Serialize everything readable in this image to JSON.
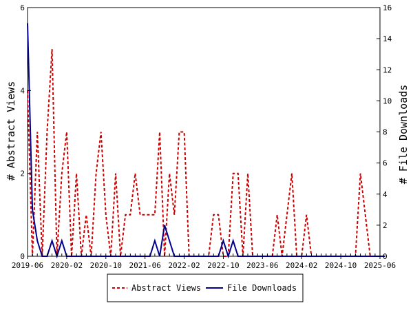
{
  "chart_data": {
    "type": "line",
    "ylabel": "# Abstract Views",
    "y2label": "# File Downloads",
    "ylim": [
      0,
      6
    ],
    "y2lim": [
      0,
      16
    ],
    "y_ticks": [
      "0",
      "2",
      "4",
      "6"
    ],
    "y2_ticks": [
      "0",
      "2",
      "4",
      "6",
      "8",
      "10",
      "12",
      "14",
      "16"
    ],
    "x_ticks": [
      "2019-06",
      "2020-02",
      "2020-10",
      "2021-06",
      "2022-02",
      "2022-10",
      "2023-06",
      "2024-02",
      "2024-10",
      "2025-06"
    ],
    "x_start": "2019-06",
    "x_end": "2025-06",
    "grid": false,
    "legend_position": "bottom",
    "series": [
      {
        "name": "Abstract Views",
        "axis": "left",
        "color": "#cc0000",
        "dash": "dashed",
        "x": [
          "2019-06",
          "2019-07",
          "2019-08",
          "2019-09",
          "2019-10",
          "2019-11",
          "2019-12",
          "2020-01",
          "2020-02",
          "2020-03",
          "2020-04",
          "2020-05",
          "2020-06",
          "2020-07",
          "2020-08",
          "2020-09",
          "2020-10",
          "2020-11",
          "2020-12",
          "2021-01",
          "2021-02",
          "2021-03",
          "2021-04",
          "2021-05",
          "2021-06",
          "2021-07",
          "2021-08",
          "2021-09",
          "2021-10",
          "2021-11",
          "2021-12",
          "2022-01",
          "2022-02",
          "2022-03",
          "2022-04",
          "2022-05",
          "2022-06",
          "2022-07",
          "2022-08",
          "2022-09",
          "2022-10",
          "2022-11",
          "2022-12",
          "2023-01",
          "2023-02",
          "2023-03",
          "2023-04",
          "2023-05",
          "2023-06",
          "2023-07",
          "2023-08",
          "2023-09",
          "2023-10",
          "2023-11",
          "2023-12",
          "2024-01",
          "2024-02",
          "2024-03",
          "2024-04",
          "2024-05",
          "2024-06",
          "2024-07",
          "2024-08",
          "2024-09",
          "2024-10",
          "2024-11",
          "2024-12",
          "2025-01",
          "2025-02",
          "2025-03",
          "2025-04",
          "2025-05",
          "2025-06",
          "2025-07"
        ],
        "values": [
          4,
          0,
          3,
          0,
          3,
          5,
          0,
          2,
          3,
          0,
          2,
          0,
          1,
          0,
          2,
          3,
          1,
          0,
          2,
          0,
          1,
          1,
          2,
          1,
          1,
          1,
          1,
          3,
          0,
          2,
          1,
          3,
          3,
          0,
          0,
          0,
          0,
          0,
          1,
          1,
          0,
          0,
          2,
          2,
          0,
          2,
          0,
          0,
          0,
          0,
          0,
          1,
          0,
          1,
          2,
          0,
          0,
          1,
          0,
          0,
          0,
          0,
          0,
          0,
          0,
          0,
          0,
          0,
          2,
          1,
          0,
          0,
          0,
          0
        ],
        "x_detail": [
          "2019-05-15",
          "2019-06",
          "2019-07",
          "2019-08",
          "2019-09",
          "2019-10",
          "2019-11",
          "2019-12",
          "2020-01",
          "2020-02",
          "2020-03",
          "2020-04",
          "2020-05",
          "2020-06",
          "2020-07",
          "2020-08",
          "2020-09",
          "2020-10",
          "2020-11",
          "2020-12",
          "2021-01",
          "2021-02",
          "2021-03",
          "2021-04",
          "2021-05",
          "2021-06",
          "2021-07",
          "2021-08",
          "2021-09",
          "2021-10",
          "2021-11",
          "2021-12",
          "2022-01",
          "2022-02",
          "2022-03",
          "2022-04",
          "2022-05",
          "2022-06",
          "2022-07",
          "2022-08",
          "2022-09",
          "2022-10",
          "2022-11",
          "2022-12",
          "2023-01",
          "2023-02",
          "2023-03",
          "2023-04",
          "2023-05",
          "2023-06",
          "2023-07",
          "2023-08",
          "2023-09",
          "2023-10",
          "2023-11",
          "2023-12",
          "2024-01",
          "2024-02",
          "2024-03",
          "2024-04",
          "2024-05",
          "2024-06",
          "2024-07",
          "2024-08",
          "2024-09",
          "2024-10",
          "2024-11",
          "2024-12",
          "2025-01",
          "2025-02",
          "2025-03",
          "2025-04",
          "2025-05",
          "2025-06",
          "2025-07"
        ]
      },
      {
        "name": "File Downloads",
        "axis": "right",
        "color": "#00008b",
        "dash": "solid",
        "x": [
          "2019-06",
          "2019-07",
          "2019-08",
          "2019-09",
          "2019-10",
          "2019-11",
          "2019-12",
          "2020-01",
          "2020-02",
          "2020-03",
          "2020-04",
          "2020-05",
          "2020-06",
          "2020-07",
          "2020-08",
          "2020-09",
          "2020-10",
          "2020-11",
          "2020-12",
          "2021-01",
          "2021-02",
          "2021-03",
          "2021-04",
          "2021-05",
          "2021-06",
          "2021-07",
          "2021-08",
          "2021-09",
          "2021-10",
          "2021-11",
          "2021-12",
          "2022-01",
          "2022-02",
          "2022-03",
          "2022-04",
          "2022-05",
          "2022-06",
          "2022-07",
          "2022-08",
          "2022-09",
          "2022-10",
          "2022-11",
          "2022-12",
          "2023-01",
          "2023-02",
          "2023-03",
          "2023-04",
          "2023-05",
          "2023-06",
          "2023-07",
          "2023-08",
          "2023-09",
          "2023-10",
          "2023-11",
          "2023-12",
          "2024-01",
          "2024-02",
          "2024-03",
          "2024-04",
          "2024-05",
          "2024-06",
          "2024-07",
          "2024-08",
          "2024-09",
          "2024-10",
          "2024-11",
          "2024-12",
          "2025-01",
          "2025-02",
          "2025-03",
          "2025-04",
          "2025-05",
          "2025-06",
          "2025-07"
        ],
        "values": [
          15,
          3,
          1,
          0,
          0,
          1,
          0,
          1,
          0,
          0,
          0,
          0,
          0,
          0,
          0,
          0,
          0,
          0,
          0,
          0,
          0,
          0,
          0,
          0,
          0,
          0,
          1,
          0,
          2,
          1,
          0,
          0,
          0,
          0,
          0,
          0,
          0,
          0,
          0,
          0,
          1,
          0,
          1,
          0,
          0,
          0,
          0,
          0,
          0,
          0,
          0,
          0,
          0,
          0,
          0,
          0,
          0,
          0,
          0,
          0,
          0,
          0,
          0,
          0,
          0,
          0,
          0,
          0,
          0,
          0,
          0,
          0,
          0,
          0
        ]
      }
    ]
  }
}
